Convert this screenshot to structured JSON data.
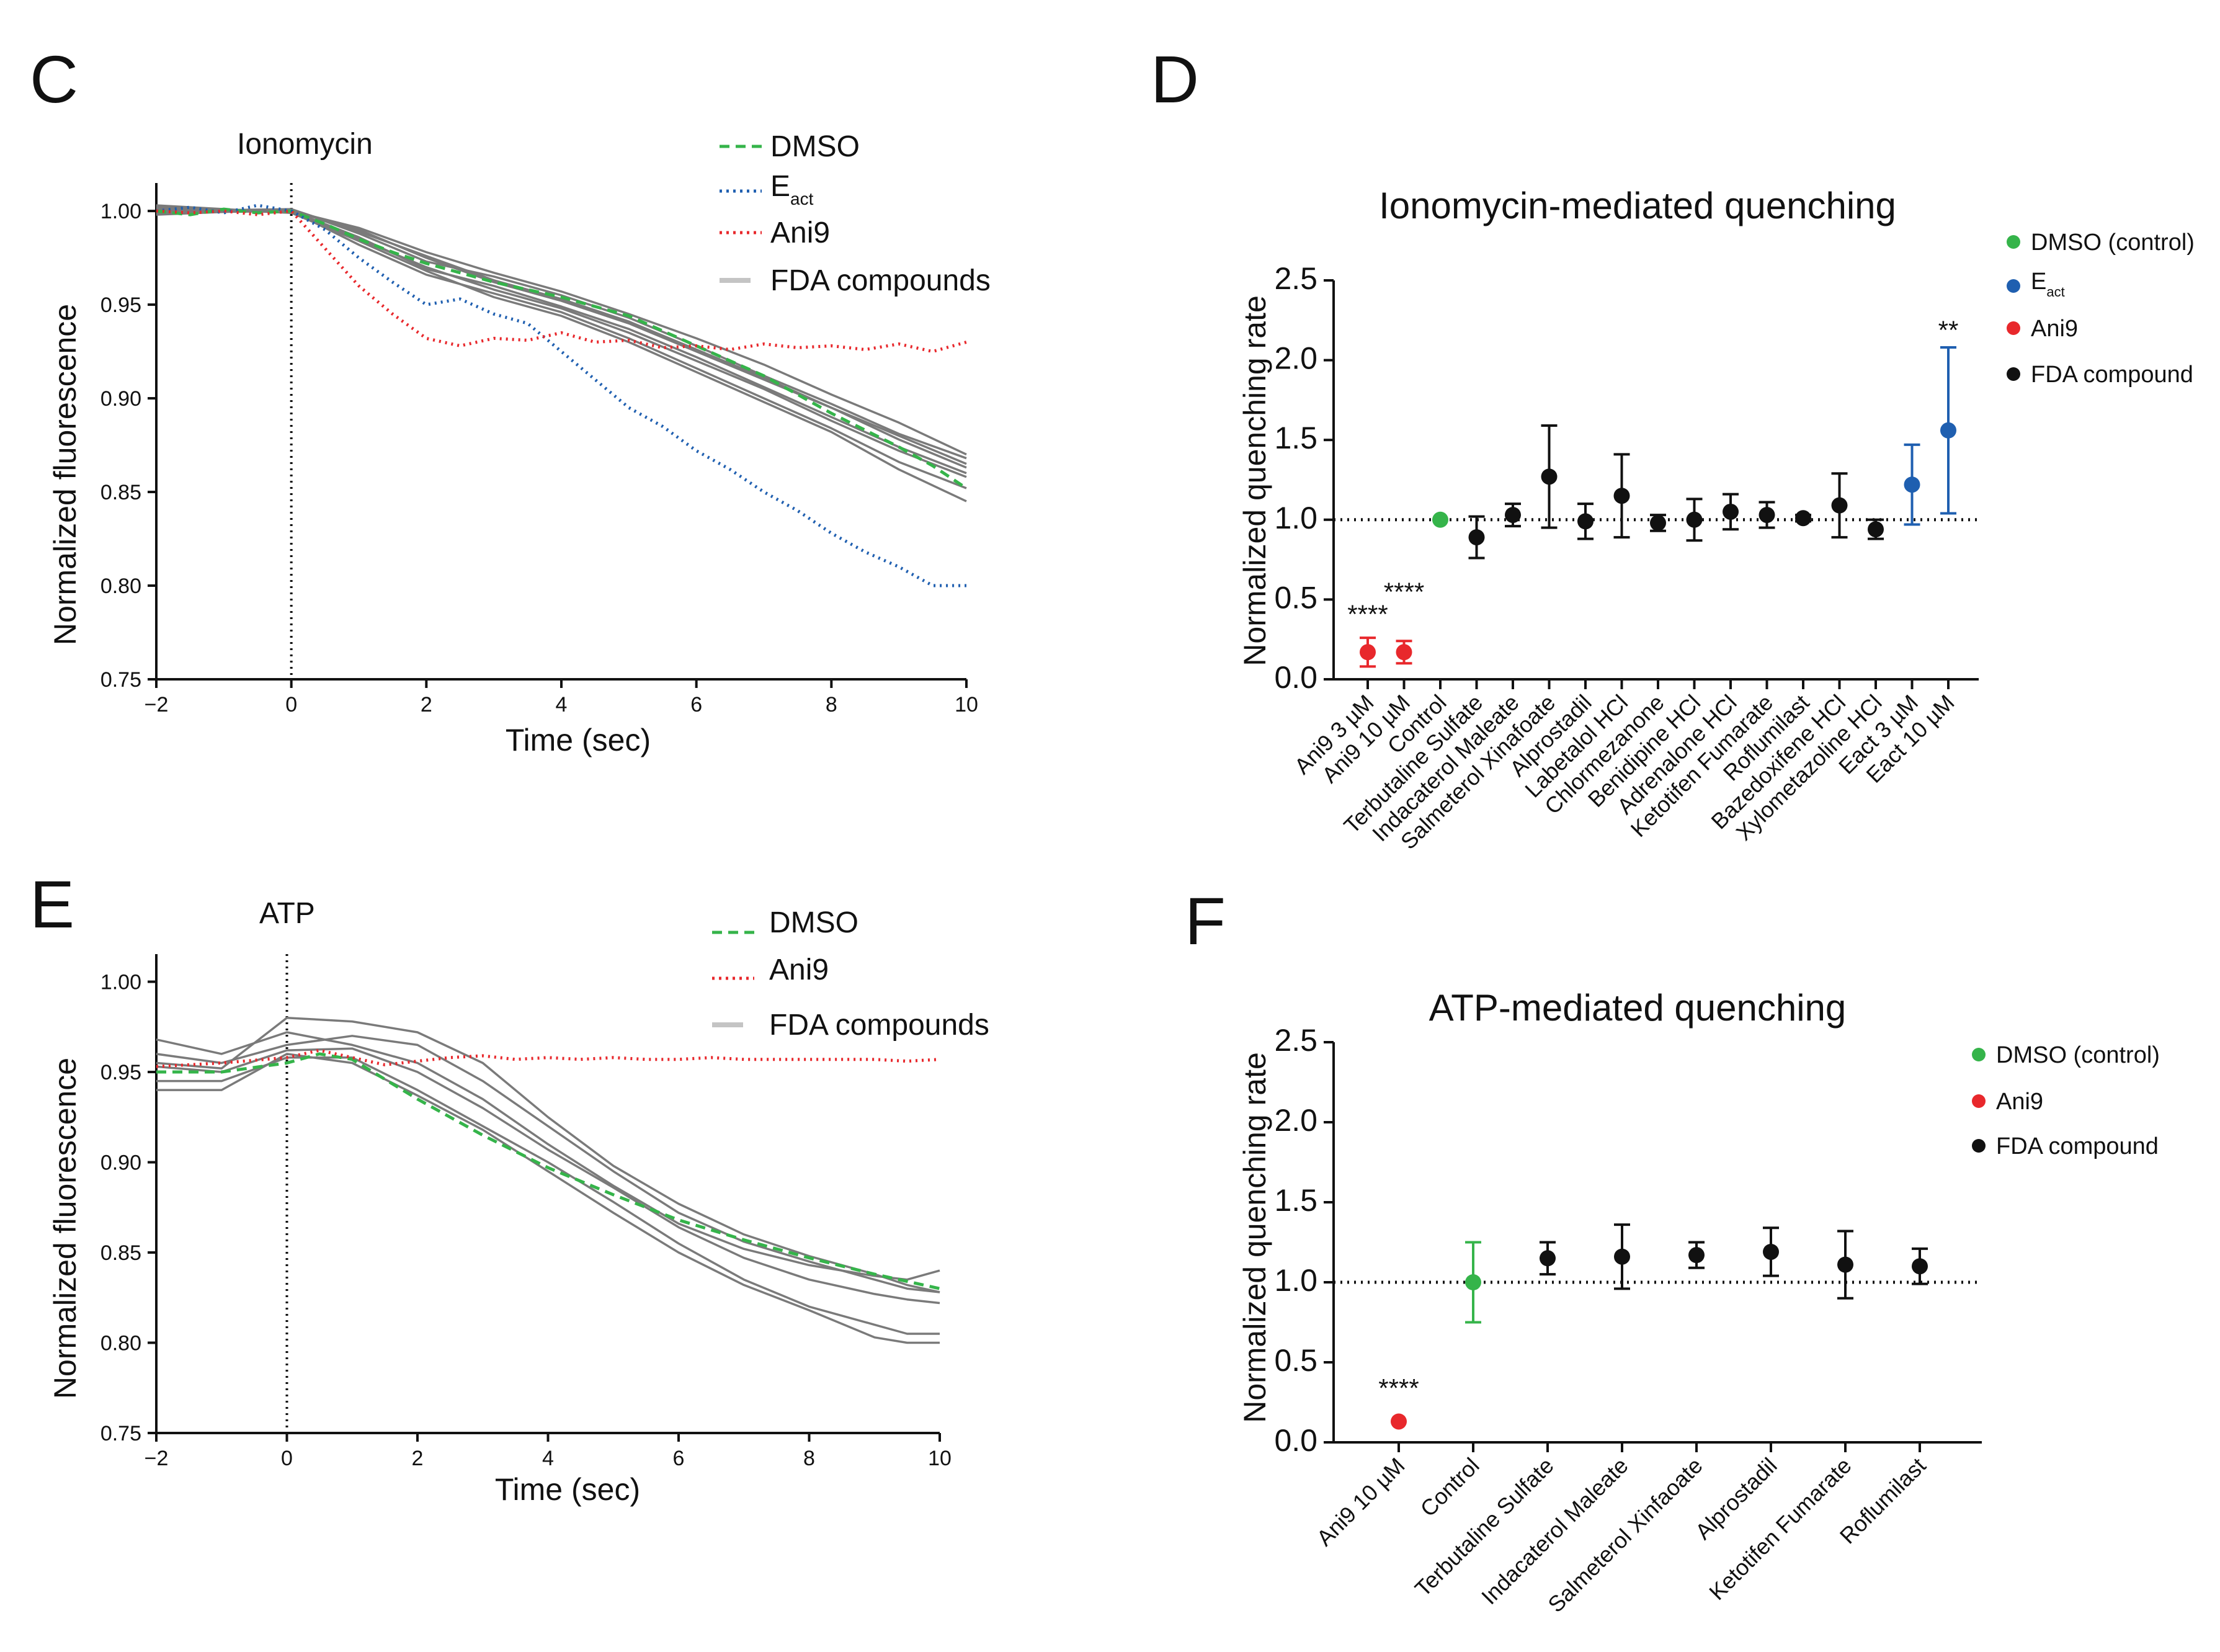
{
  "colors": {
    "dmso": "#35b44a",
    "eact": "#1f5fb0",
    "ani9": "#e8282c",
    "fda": "#7a7a7a",
    "fda_point": "#111111",
    "legend_fda_line": "#c4c4c4"
  },
  "chart_data": [
    {
      "panel": "C",
      "type": "line",
      "title": "Ionomycin",
      "xlabel": "Time (sec)",
      "ylabel": "Normalized fluorescence",
      "xlim": [
        -2,
        10
      ],
      "ylim": [
        0.75,
        1.005
      ],
      "xticks": [
        "−2",
        "0",
        "2",
        "4",
        "6",
        "8",
        "10"
      ],
      "yticks": [
        "0.75",
        "0.80",
        "0.85",
        "0.90",
        "0.95",
        "1.00"
      ],
      "legend": [
        {
          "key": "dmso",
          "label": "DMSO",
          "style": "dashed"
        },
        {
          "key": "eact",
          "label": "E",
          "sub": "act",
          "style": "dotted"
        },
        {
          "key": "ani9",
          "label": "Ani9",
          "style": "dotted"
        },
        {
          "key": "fda",
          "label": "FDA compounds",
          "style": "solid"
        }
      ],
      "series": [
        {
          "name": "DMSO",
          "key": "dmso",
          "style": "dashed",
          "x": [
            -2,
            -1.5,
            -1,
            -0.5,
            0,
            0.5,
            1,
            1.5,
            2,
            2.5,
            3,
            3.5,
            4,
            4.5,
            5,
            5.5,
            6,
            6.5,
            7,
            7.5,
            8,
            8.5,
            9,
            9.5,
            10
          ],
          "y": [
            1.0,
            0.998,
            1.001,
            0.999,
            1.0,
            0.993,
            0.985,
            0.978,
            0.972,
            0.967,
            0.962,
            0.958,
            0.954,
            0.949,
            0.944,
            0.936,
            0.928,
            0.92,
            0.912,
            0.902,
            0.892,
            0.883,
            0.874,
            0.864,
            0.852
          ]
        },
        {
          "name": "Eact",
          "key": "eact",
          "style": "dotted",
          "x": [
            -2,
            -1.5,
            -1,
            -0.5,
            0,
            0.5,
            1,
            1.5,
            2,
            2.5,
            3,
            3.5,
            4,
            4.5,
            5,
            5.5,
            6,
            6.5,
            7,
            7.5,
            8,
            8.5,
            9,
            9.5,
            10
          ],
          "y": [
            1.0,
            1.002,
            0.999,
            1.003,
            1.0,
            0.99,
            0.975,
            0.962,
            0.95,
            0.953,
            0.945,
            0.94,
            0.925,
            0.91,
            0.895,
            0.885,
            0.872,
            0.862,
            0.85,
            0.84,
            0.828,
            0.818,
            0.81,
            0.8,
            0.8
          ]
        },
        {
          "name": "Ani9",
          "key": "ani9",
          "style": "dotted",
          "x": [
            -2,
            -1.5,
            -1,
            -0.5,
            0,
            0.5,
            1,
            1.5,
            2,
            2.5,
            3,
            3.5,
            4,
            4.5,
            5,
            5.5,
            6,
            6.5,
            7,
            7.5,
            8,
            8.5,
            9,
            9.5,
            10
          ],
          "y": [
            1.0,
            0.999,
            1.0,
            0.998,
            1.0,
            0.98,
            0.96,
            0.945,
            0.932,
            0.928,
            0.932,
            0.931,
            0.935,
            0.93,
            0.931,
            0.927,
            0.928,
            0.926,
            0.929,
            0.927,
            0.928,
            0.926,
            0.929,
            0.925,
            0.93
          ]
        },
        {
          "name": "FDA compound 1",
          "key": "fda",
          "style": "solid",
          "x": [
            -2,
            0,
            1,
            2,
            3,
            4,
            5,
            6,
            7,
            8,
            9,
            10
          ],
          "y": [
            1.0,
            1.0,
            0.99,
            0.975,
            0.962,
            0.952,
            0.94,
            0.925,
            0.91,
            0.895,
            0.88,
            0.865
          ]
        },
        {
          "name": "FDA compound 2",
          "key": "fda",
          "style": "solid",
          "x": [
            -2,
            0,
            1,
            2,
            3,
            4,
            5,
            6,
            7,
            8,
            9,
            10
          ],
          "y": [
            1.002,
            0.999,
            0.985,
            0.97,
            0.958,
            0.948,
            0.935,
            0.92,
            0.905,
            0.888,
            0.872,
            0.858
          ]
        },
        {
          "name": "FDA compound 3",
          "key": "fda",
          "style": "solid",
          "x": [
            -2,
            0,
            1,
            2,
            3,
            4,
            5,
            6,
            7,
            8,
            9,
            10
          ],
          "y": [
            0.998,
            1.001,
            0.988,
            0.973,
            0.965,
            0.955,
            0.943,
            0.928,
            0.912,
            0.897,
            0.881,
            0.868
          ]
        },
        {
          "name": "FDA compound 4",
          "key": "fda",
          "style": "solid",
          "x": [
            -2,
            0,
            1,
            2,
            3,
            4,
            5,
            6,
            7,
            8,
            9,
            10
          ],
          "y": [
            1.0,
            1.0,
            0.982,
            0.966,
            0.956,
            0.946,
            0.932,
            0.916,
            0.9,
            0.884,
            0.866,
            0.852
          ]
        },
        {
          "name": "FDA compound 5",
          "key": "fda",
          "style": "solid",
          "x": [
            -2,
            0,
            1,
            2,
            3,
            4,
            5,
            6,
            7,
            8,
            9,
            10
          ],
          "y": [
            1.001,
            1.0,
            0.991,
            0.978,
            0.967,
            0.957,
            0.945,
            0.932,
            0.918,
            0.902,
            0.887,
            0.87
          ]
        },
        {
          "name": "FDA compound 6",
          "key": "fda",
          "style": "solid",
          "x": [
            -2,
            0,
            1,
            2,
            3,
            4,
            5,
            6,
            7,
            8,
            9,
            10
          ],
          "y": [
            0.999,
            1.0,
            0.986,
            0.969,
            0.96,
            0.949,
            0.937,
            0.922,
            0.906,
            0.89,
            0.874,
            0.86
          ]
        },
        {
          "name": "FDA compound 7",
          "key": "fda",
          "style": "solid",
          "x": [
            -2,
            0,
            1,
            2,
            3,
            4,
            5,
            6,
            7,
            8,
            9,
            10
          ],
          "y": [
            1.003,
            0.999,
            0.984,
            0.968,
            0.954,
            0.944,
            0.93,
            0.914,
            0.898,
            0.882,
            0.862,
            0.845
          ]
        },
        {
          "name": "FDA compound 8",
          "key": "fda",
          "style": "solid",
          "x": [
            -2,
            0,
            1,
            2,
            3,
            4,
            5,
            6,
            7,
            8,
            9,
            10
          ],
          "y": [
            1.0,
            1.001,
            0.989,
            0.976,
            0.963,
            0.953,
            0.941,
            0.926,
            0.911,
            0.895,
            0.878,
            0.863
          ]
        }
      ]
    },
    {
      "panel": "D",
      "type": "scatter",
      "title": "Ionomycin-mediated quenching",
      "xlabel": "",
      "ylabel": "Normalized quenching rate",
      "ylim": [
        0,
        2.5
      ],
      "yticks": [
        "0.0",
        "0.5",
        "1.0",
        "1.5",
        "2.0",
        "2.5"
      ],
      "reference_line": 1.0,
      "categories": [
        "Ani9 3 µM",
        "Ani9 10 µM",
        "Control",
        "Terbutaline Sulfate",
        "Indacaterol Maleate",
        "Salmeterol Xinafoate",
        "Alprostadil",
        "Labetalol HCl",
        "Chlormezanone",
        "Benidipine HCl",
        "Adrenalone HCl",
        "Ketotifen Fumarate",
        "Roflumilast",
        "Bazedoxifene HCl",
        "Xylometazoline HCl",
        "Eact 3 µM",
        "Eact 10 µM"
      ],
      "values": [
        0.17,
        0.17,
        1.0,
        0.89,
        1.03,
        1.27,
        0.99,
        1.15,
        0.98,
        1.0,
        1.05,
        1.03,
        1.01,
        1.09,
        0.94,
        1.22,
        1.56
      ],
      "err_low": [
        0.09,
        0.07,
        0.0,
        0.13,
        0.07,
        0.32,
        0.11,
        0.26,
        0.05,
        0.13,
        0.11,
        0.08,
        0.02,
        0.2,
        0.06,
        0.25,
        0.52
      ],
      "err_high": [
        0.09,
        0.07,
        0.0,
        0.13,
        0.07,
        0.32,
        0.11,
        0.26,
        0.05,
        0.13,
        0.11,
        0.08,
        0.02,
        0.2,
        0.06,
        0.25,
        0.52
      ],
      "groups": [
        "ani9",
        "ani9",
        "dmso",
        "fda",
        "fda",
        "fda",
        "fda",
        "fda",
        "fda",
        "fda",
        "fda",
        "fda",
        "fda",
        "fda",
        "fda",
        "eact",
        "eact"
      ],
      "annotations": [
        {
          "category_index": 0,
          "text": "****",
          "y": 0.43
        },
        {
          "category_index": 1,
          "text": "****",
          "y": 0.57
        },
        {
          "category_index": 16,
          "text": "**",
          "y": 2.21
        }
      ],
      "legend": [
        {
          "key": "dmso",
          "label": "DMSO (control)"
        },
        {
          "key": "eact",
          "label": "E",
          "sub": "act"
        },
        {
          "key": "ani9",
          "label": "Ani9"
        },
        {
          "key": "fda",
          "label": "FDA compound"
        }
      ]
    },
    {
      "panel": "E",
      "type": "line",
      "title": "ATP",
      "xlabel": "Time (sec)",
      "ylabel": "Normalized fluorescence",
      "xlim": [
        -2,
        10
      ],
      "ylim": [
        0.75,
        1.005
      ],
      "xticks": [
        "−2",
        "0",
        "2",
        "4",
        "6",
        "8",
        "10"
      ],
      "yticks": [
        "0.75",
        "0.80",
        "0.85",
        "0.90",
        "0.95",
        "1.00"
      ],
      "legend": [
        {
          "key": "dmso",
          "label": "DMSO",
          "style": "dashed"
        },
        {
          "key": "ani9",
          "label": "Ani9",
          "style": "dotted"
        },
        {
          "key": "fda",
          "label": "FDA compounds",
          "style": "solid"
        }
      ],
      "series": [
        {
          "name": "DMSO",
          "key": "dmso",
          "style": "dashed",
          "x": [
            -2,
            -1,
            0,
            0.5,
            1,
            2,
            3,
            4,
            5,
            6,
            7,
            8,
            9,
            10
          ],
          "y": [
            0.95,
            0.95,
            0.955,
            0.96,
            0.957,
            0.935,
            0.915,
            0.897,
            0.882,
            0.868,
            0.857,
            0.847,
            0.838,
            0.83
          ]
        },
        {
          "name": "Ani9",
          "key": "ani9",
          "style": "dotted",
          "x": [
            -2,
            -1,
            0,
            0.5,
            1,
            1.5,
            2,
            2.5,
            3,
            3.5,
            4,
            4.5,
            5,
            5.5,
            6,
            6.5,
            7,
            7.5,
            8,
            8.5,
            9,
            9.5,
            10
          ],
          "y": [
            0.953,
            0.955,
            0.958,
            0.962,
            0.958,
            0.954,
            0.956,
            0.958,
            0.959,
            0.957,
            0.958,
            0.957,
            0.958,
            0.957,
            0.957,
            0.958,
            0.957,
            0.957,
            0.957,
            0.957,
            0.957,
            0.956,
            0.957
          ]
        },
        {
          "name": "FDA compound 1",
          "key": "fda",
          "style": "solid",
          "x": [
            -2,
            -1,
            0,
            1,
            2,
            3,
            4,
            5,
            6,
            7,
            8,
            9,
            9.5,
            10
          ],
          "y": [
            0.968,
            0.96,
            0.972,
            0.965,
            0.955,
            0.935,
            0.91,
            0.887,
            0.866,
            0.852,
            0.843,
            0.837,
            0.835,
            0.84
          ]
        },
        {
          "name": "FDA compound 2",
          "key": "fda",
          "style": "solid",
          "x": [
            -2,
            -1,
            0,
            1,
            2,
            3,
            4,
            5,
            6,
            7,
            8,
            9,
            9.5,
            10
          ],
          "y": [
            0.96,
            0.955,
            0.965,
            0.97,
            0.965,
            0.945,
            0.92,
            0.895,
            0.872,
            0.856,
            0.845,
            0.835,
            0.83,
            0.828
          ]
        },
        {
          "name": "FDA compound 3",
          "key": "fda",
          "style": "solid",
          "x": [
            -2,
            -1,
            0,
            1,
            2,
            3,
            4,
            5,
            6,
            7,
            8,
            9,
            9.5,
            10
          ],
          "y": [
            0.955,
            0.952,
            0.98,
            0.978,
            0.972,
            0.955,
            0.925,
            0.898,
            0.877,
            0.86,
            0.848,
            0.838,
            0.832,
            0.828
          ]
        },
        {
          "name": "FDA compound 4",
          "key": "fda",
          "style": "solid",
          "x": [
            -2,
            -1,
            0,
            1,
            2,
            3,
            4,
            5,
            6,
            7,
            8,
            9,
            9.5,
            10
          ],
          "y": [
            0.945,
            0.945,
            0.958,
            0.958,
            0.94,
            0.92,
            0.9,
            0.878,
            0.855,
            0.835,
            0.82,
            0.81,
            0.805,
            0.805
          ]
        },
        {
          "name": "FDA compound 5",
          "key": "fda",
          "style": "solid",
          "x": [
            -2,
            -1,
            0,
            1,
            2,
            3,
            4,
            5,
            6,
            7,
            8,
            9,
            9.5,
            10
          ],
          "y": [
            0.94,
            0.94,
            0.96,
            0.955,
            0.937,
            0.918,
            0.895,
            0.872,
            0.85,
            0.832,
            0.818,
            0.803,
            0.8,
            0.8
          ]
        },
        {
          "name": "FDA compound 6",
          "key": "fda",
          "style": "solid",
          "x": [
            -2,
            -1,
            0,
            1,
            2,
            3,
            4,
            5,
            6,
            7,
            8,
            9,
            9.5,
            10
          ],
          "y": [
            0.953,
            0.95,
            0.962,
            0.963,
            0.95,
            0.93,
            0.907,
            0.886,
            0.864,
            0.847,
            0.835,
            0.827,
            0.824,
            0.822
          ]
        }
      ]
    },
    {
      "panel": "F",
      "type": "scatter",
      "title": "ATP-mediated quenching",
      "xlabel": "",
      "ylabel": "Normalized quenching rate",
      "ylim": [
        0,
        2.5
      ],
      "yticks": [
        "0.0",
        "0.5",
        "1.0",
        "1.5",
        "2.0",
        "2.5"
      ],
      "reference_line": 1.0,
      "categories": [
        "Ani9 10 µM",
        "Control",
        "Terbutaline Sulfate",
        "Indacaterol Maleate",
        "Salmeterol Xinfaoate",
        "Alprostadil",
        "Ketotifen Fumarate",
        "Roflumilast"
      ],
      "values": [
        0.13,
        1.0,
        1.15,
        1.16,
        1.17,
        1.19,
        1.11,
        1.1
      ],
      "err_low": [
        0.0,
        0.25,
        0.1,
        0.2,
        0.08,
        0.15,
        0.21,
        0.11
      ],
      "err_high": [
        0.0,
        0.25,
        0.1,
        0.2,
        0.08,
        0.15,
        0.21,
        0.11
      ],
      "groups": [
        "ani9",
        "dmso",
        "fda",
        "fda",
        "fda",
        "fda",
        "fda",
        "fda"
      ],
      "annotations": [
        {
          "category_index": 0,
          "text": "****",
          "y": 0.36
        }
      ],
      "legend": [
        {
          "key": "dmso",
          "label": "DMSO (control)"
        },
        {
          "key": "ani9",
          "label": "Ani9"
        },
        {
          "key": "fda",
          "label": "FDA compound"
        }
      ]
    }
  ]
}
